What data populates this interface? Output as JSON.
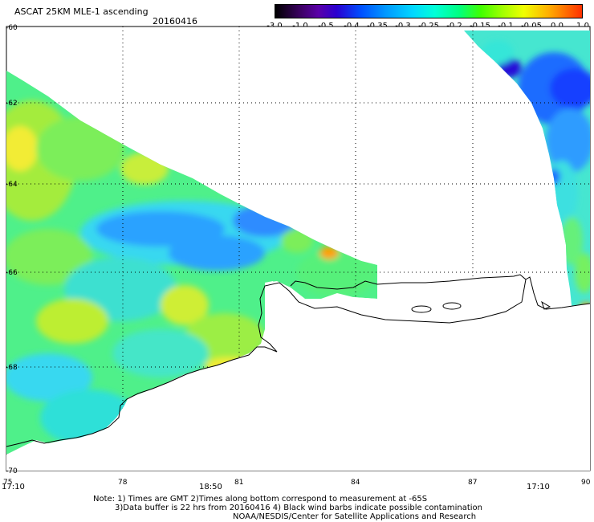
{
  "header": {
    "title": "ASCAT 25KM MLE-1 ascending",
    "date": "20160416"
  },
  "colorbar": {
    "ticks": [
      "-3.0",
      "-1.0",
      "-0.5",
      "-0.4",
      "-0.35",
      "-0.3",
      "-0.25",
      "-0.2",
      "-0.15",
      "-0.1",
      "-0.05",
      "0.0",
      "1.0"
    ],
    "colors": [
      "#000000",
      "#5a00a8",
      "#0050ff",
      "#00d8ff",
      "#00ff80",
      "#a0ff00",
      "#f0ff00",
      "#ffb000",
      "#ff3000"
    ]
  },
  "map": {
    "lat_labels": [
      "-60",
      "-62",
      "-64",
      "-66",
      "-68",
      "-70"
    ],
    "lon_labels": [
      "75",
      "78",
      "81",
      "84",
      "87",
      "90"
    ],
    "time_labels": [
      "17:10",
      "18:50",
      "17:10"
    ],
    "coastline_color": "#000000",
    "land_color": "#ffffff"
  },
  "notes": {
    "line1": "Note: 1) Times are GMT 2)Times along bottom correspond to measurement at -65S",
    "line2": "3)Data buffer is 22 hrs from 20160416 4) Black wind barbs indicate possible contamination",
    "line3": "NOAA/NESDIS/Center for Satellite Applications and Research"
  }
}
